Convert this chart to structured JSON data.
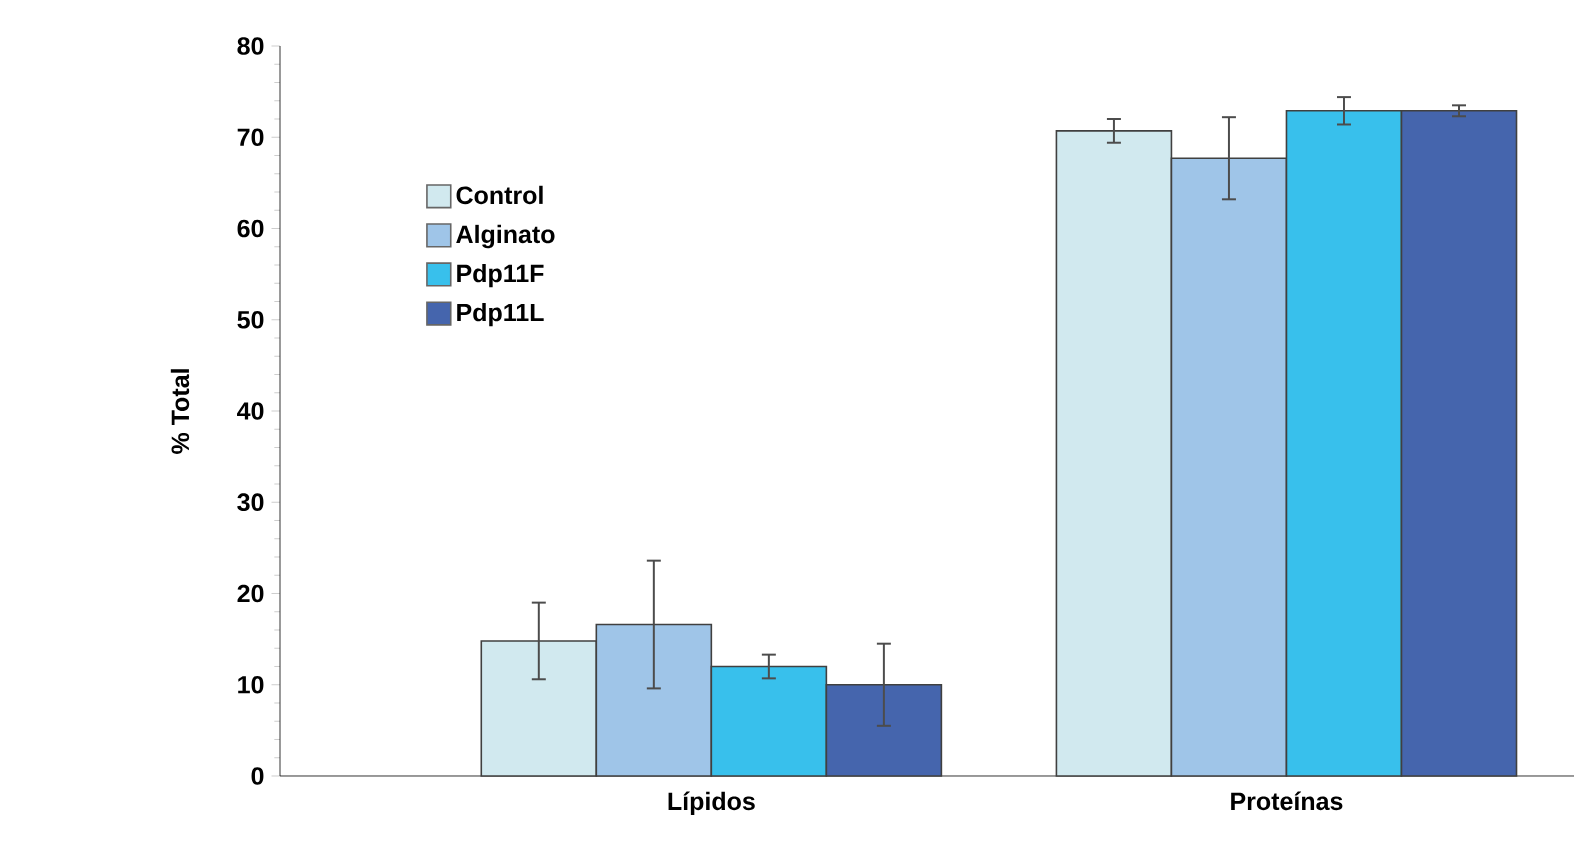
{
  "chart_data": {
    "type": "bar",
    "ylabel": "% Total",
    "categories": [
      "Lípidos",
      "Proteínas"
    ],
    "series": [
      {
        "name": "Control",
        "color": "#d1e9ef",
        "values": [
          14.8,
          70.7
        ],
        "errors": [
          4.2,
          1.3
        ]
      },
      {
        "name": "Alginato",
        "color": "#9fc5e8",
        "values": [
          16.6,
          67.7
        ],
        "errors": [
          7.0,
          4.5
        ]
      },
      {
        "name": "Pdp11F",
        "color": "#38c0ec",
        "values": [
          12.0,
          72.9
        ],
        "errors": [
          1.3,
          1.5
        ]
      },
      {
        "name": "Pdp11L",
        "color": "#4565ad",
        "values": [
          10.0,
          72.9
        ],
        "errors": [
          4.5,
          0.6
        ]
      }
    ],
    "ylim": [
      0,
      80
    ],
    "yticks": [
      0,
      10,
      20,
      30,
      40,
      50,
      60,
      70,
      80
    ],
    "grid": false,
    "legend": "top left"
  }
}
